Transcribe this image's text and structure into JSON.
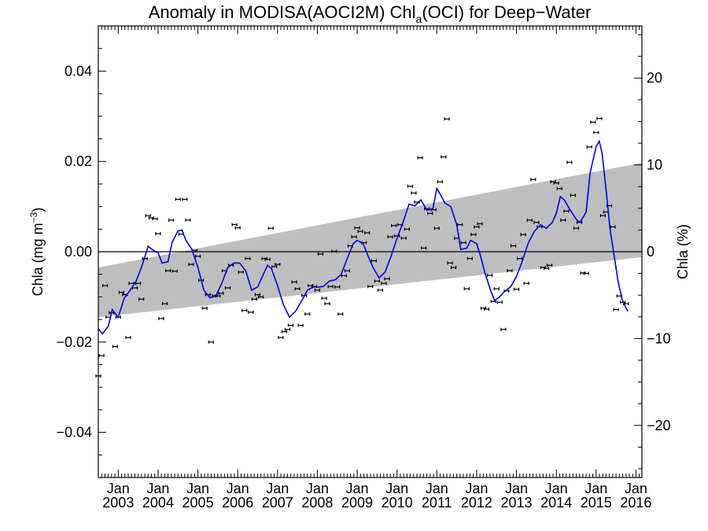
{
  "chart_data": {
    "type": "line",
    "title": "Anomaly in MODISA(AOCI2M) Chl",
    "title_sub": "a",
    "title_suffix": "(OCI) for Deep−Water",
    "ylabel": "Chla (mg m",
    "ylabel_sup": "−3",
    "ylabel_suffix": ")",
    "y2label": "Chla (%)",
    "ylim": [
      -0.05,
      0.05
    ],
    "y2lim": [
      -26,
      26
    ],
    "xlim": [
      2002.5,
      2016.15
    ],
    "yticks": [
      {
        "v": 0.04,
        "label": "0.04"
      },
      {
        "v": 0.02,
        "label": "0.02"
      },
      {
        "v": 0.0,
        "label": "0.00"
      },
      {
        "v": -0.02,
        "label": "−0.02"
      },
      {
        "v": -0.04,
        "label": "−0.04"
      }
    ],
    "y2ticks": [
      {
        "v": 20,
        "label": "20"
      },
      {
        "v": 10,
        "label": "10"
      },
      {
        "v": 0,
        "label": "0"
      },
      {
        "v": -10,
        "label": "−10"
      },
      {
        "v": -20,
        "label": "−20"
      }
    ],
    "xticks": [
      {
        "x": 2003,
        "month": "Jan",
        "year": "2003"
      },
      {
        "x": 2004,
        "month": "Jan",
        "year": "2004"
      },
      {
        "x": 2005,
        "month": "Jan",
        "year": "2005"
      },
      {
        "x": 2006,
        "month": "Jan",
        "year": "2006"
      },
      {
        "x": 2007,
        "month": "Jan",
        "year": "2007"
      },
      {
        "x": 2008,
        "month": "Jan",
        "year": "2008"
      },
      {
        "x": 2009,
        "month": "Jan",
        "year": "2009"
      },
      {
        "x": 2010,
        "month": "Jan",
        "year": "2010"
      },
      {
        "x": 2011,
        "month": "Jan",
        "year": "2011"
      },
      {
        "x": 2012,
        "month": "Jan",
        "year": "2012"
      },
      {
        "x": 2013,
        "month": "Jan",
        "year": "2013"
      },
      {
        "x": 2014,
        "month": "Jan",
        "year": "2014"
      },
      {
        "x": 2015,
        "month": "Jan",
        "year": "2015"
      },
      {
        "x": 2016,
        "month": "Jan",
        "year": "2016"
      }
    ],
    "band": {
      "x": [
        2002.5,
        2016.15
      ],
      "lower": [
        -0.0145,
        -0.0012
      ],
      "upper": [
        -0.0035,
        0.0197
      ],
      "color": "#bebebe"
    },
    "zero_line": 0,
    "colors": {
      "line": "#0000ee",
      "points": "#000000",
      "band": "#bebebe"
    },
    "points": [
      {
        "x": 2002.5,
        "y": -0.0275
      },
      {
        "x": 2002.58,
        "y": -0.023
      },
      {
        "x": 2002.67,
        "y": -0.0075
      },
      {
        "x": 2002.75,
        "y": -0.0145
      },
      {
        "x": 2002.83,
        "y": -0.0135
      },
      {
        "x": 2002.92,
        "y": -0.021
      },
      {
        "x": 2003.0,
        "y": -0.0145
      },
      {
        "x": 2003.08,
        "y": -0.009
      },
      {
        "x": 2003.17,
        "y": -0.0095
      },
      {
        "x": 2003.25,
        "y": -0.019
      },
      {
        "x": 2003.33,
        "y": -0.007
      },
      {
        "x": 2003.42,
        "y": -0.008
      },
      {
        "x": 2003.5,
        "y": -0.007
      },
      {
        "x": 2003.58,
        "y": -0.0105
      },
      {
        "x": 2003.67,
        "y": -0.0015
      },
      {
        "x": 2003.75,
        "y": 0.008
      },
      {
        "x": 2003.83,
        "y": 0.0075
      },
      {
        "x": 2003.92,
        "y": 0.0073
      },
      {
        "x": 2004.0,
        "y": 0.004
      },
      {
        "x": 2004.08,
        "y": -0.0148
      },
      {
        "x": 2004.17,
        "y": -0.0115
      },
      {
        "x": 2004.25,
        "y": -0.0042
      },
      {
        "x": 2004.33,
        "y": 0.007
      },
      {
        "x": 2004.42,
        "y": -0.0043
      },
      {
        "x": 2004.5,
        "y": 0.0116
      },
      {
        "x": 2004.58,
        "y": 0.0039
      },
      {
        "x": 2004.67,
        "y": 0.0116
      },
      {
        "x": 2004.75,
        "y": 0.007
      },
      {
        "x": 2004.83,
        "y": -0.0028
      },
      {
        "x": 2004.92,
        "y": 0.0003
      },
      {
        "x": 2005.0,
        "y": -0.001
      },
      {
        "x": 2005.08,
        "y": -0.0063
      },
      {
        "x": 2005.17,
        "y": -0.0125
      },
      {
        "x": 2005.25,
        "y": -0.0095
      },
      {
        "x": 2005.33,
        "y": -0.02
      },
      {
        "x": 2005.42,
        "y": -0.0097
      },
      {
        "x": 2005.5,
        "y": -0.0098
      },
      {
        "x": 2005.58,
        "y": -0.0092
      },
      {
        "x": 2005.67,
        "y": -0.0042
      },
      {
        "x": 2005.75,
        "y": -0.008
      },
      {
        "x": 2005.83,
        "y": -0.003
      },
      {
        "x": 2005.92,
        "y": 0.006
      },
      {
        "x": 2006.0,
        "y": 0.0053
      },
      {
        "x": 2006.08,
        "y": -0.0045
      },
      {
        "x": 2006.17,
        "y": -0.013
      },
      {
        "x": 2006.25,
        "y": -0.0015
      },
      {
        "x": 2006.33,
        "y": -0.0134
      },
      {
        "x": 2006.42,
        "y": -0.0105
      },
      {
        "x": 2006.5,
        "y": -0.0095
      },
      {
        "x": 2006.58,
        "y": -0.01
      },
      {
        "x": 2006.67,
        "y": -0.0015
      },
      {
        "x": 2006.75,
        "y": -0.0017
      },
      {
        "x": 2006.83,
        "y": 0.0052
      },
      {
        "x": 2006.92,
        "y": -0.0033
      },
      {
        "x": 2007.0,
        "y": -0.0028
      },
      {
        "x": 2007.08,
        "y": -0.019
      },
      {
        "x": 2007.17,
        "y": -0.0177
      },
      {
        "x": 2007.25,
        "y": -0.0172
      },
      {
        "x": 2007.33,
        "y": -0.0163
      },
      {
        "x": 2007.42,
        "y": -0.0067
      },
      {
        "x": 2007.5,
        "y": -0.0082
      },
      {
        "x": 2007.58,
        "y": -0.0163
      },
      {
        "x": 2007.67,
        "y": -0.0097
      },
      {
        "x": 2007.75,
        "y": -0.0138
      },
      {
        "x": 2007.83,
        "y": -0.0075
      },
      {
        "x": 2007.92,
        "y": -0.0077
      },
      {
        "x": 2008.0,
        "y": -0.0085
      },
      {
        "x": 2008.08,
        "y": -0.0005
      },
      {
        "x": 2008.17,
        "y": -0.0103
      },
      {
        "x": 2008.25,
        "y": -0.0115
      },
      {
        "x": 2008.33,
        "y": -0.0077
      },
      {
        "x": 2008.42,
        "y": 0.0001
      },
      {
        "x": 2008.5,
        "y": -0.0078
      },
      {
        "x": 2008.58,
        "y": -0.0138
      },
      {
        "x": 2008.67,
        "y": -0.0053
      },
      {
        "x": 2008.75,
        "y": -0.0042
      },
      {
        "x": 2008.83,
        "y": 0.0013
      },
      {
        "x": 2008.92,
        "y": 0.0033
      },
      {
        "x": 2009.0,
        "y": 0.0053
      },
      {
        "x": 2009.08,
        "y": 0.0045
      },
      {
        "x": 2009.17,
        "y": 0.002
      },
      {
        "x": 2009.25,
        "y": 0.0042
      },
      {
        "x": 2009.33,
        "y": -0.0077
      },
      {
        "x": 2009.42,
        "y": -0.002
      },
      {
        "x": 2009.5,
        "y": -0.0065
      },
      {
        "x": 2009.58,
        "y": -0.0085
      },
      {
        "x": 2009.67,
        "y": -0.007
      },
      {
        "x": 2009.75,
        "y": -0.006
      },
      {
        "x": 2009.83,
        "y": 0.0033
      },
      {
        "x": 2009.92,
        "y": 0.0058
      },
      {
        "x": 2010.0,
        "y": 0.0035
      },
      {
        "x": 2010.08,
        "y": 0.006
      },
      {
        "x": 2010.17,
        "y": 0.003
      },
      {
        "x": 2010.25,
        "y": 0.005
      },
      {
        "x": 2010.33,
        "y": 0.0145
      },
      {
        "x": 2010.42,
        "y": 0.013
      },
      {
        "x": 2010.5,
        "y": 0.011
      },
      {
        "x": 2010.58,
        "y": 0.0208
      },
      {
        "x": 2010.67,
        "y": 0.0008
      },
      {
        "x": 2010.75,
        "y": 0.0095
      },
      {
        "x": 2010.83,
        "y": 0.0085
      },
      {
        "x": 2010.92,
        "y": 0.0093
      },
      {
        "x": 2011.0,
        "y": 0.0052
      },
      {
        "x": 2011.08,
        "y": 0.0155
      },
      {
        "x": 2011.17,
        "y": 0.021
      },
      {
        "x": 2011.25,
        "y": 0.0294
      },
      {
        "x": 2011.33,
        "y": -0.0025
      },
      {
        "x": 2011.42,
        "y": -0.0035
      },
      {
        "x": 2011.5,
        "y": 0.003
      },
      {
        "x": 2011.58,
        "y": 0.006
      },
      {
        "x": 2011.67,
        "y": 0.002
      },
      {
        "x": 2011.75,
        "y": -0.0082
      },
      {
        "x": 2011.83,
        "y": -0.0015
      },
      {
        "x": 2011.92,
        "y": 0.0038
      },
      {
        "x": 2012.0,
        "y": 0.0055
      },
      {
        "x": 2012.08,
        "y": 0.0062
      },
      {
        "x": 2012.17,
        "y": -0.0125
      },
      {
        "x": 2012.25,
        "y": -0.0127
      },
      {
        "x": 2012.33,
        "y": -0.0052
      },
      {
        "x": 2012.42,
        "y": -0.011
      },
      {
        "x": 2012.5,
        "y": -0.0082
      },
      {
        "x": 2012.58,
        "y": -0.0112
      },
      {
        "x": 2012.67,
        "y": -0.0172
      },
      {
        "x": 2012.75,
        "y": -0.0087
      },
      {
        "x": 2012.83,
        "y": -0.0042
      },
      {
        "x": 2012.92,
        "y": 0.0013
      },
      {
        "x": 2013.0,
        "y": -0.0083
      },
      {
        "x": 2013.08,
        "y": -0.0015
      },
      {
        "x": 2013.17,
        "y": 0.0038
      },
      {
        "x": 2013.25,
        "y": -0.007
      },
      {
        "x": 2013.33,
        "y": 0.007
      },
      {
        "x": 2013.42,
        "y": 0.016
      },
      {
        "x": 2013.5,
        "y": 0.0065
      },
      {
        "x": 2013.58,
        "y": 0.0055
      },
      {
        "x": 2013.67,
        "y": -0.0035
      },
      {
        "x": 2013.75,
        "y": -0.0037
      },
      {
        "x": 2013.83,
        "y": -0.003
      },
      {
        "x": 2013.92,
        "y": 0.0155
      },
      {
        "x": 2014.0,
        "y": 0.0152
      },
      {
        "x": 2014.08,
        "y": 0.014
      },
      {
        "x": 2014.17,
        "y": 0.007
      },
      {
        "x": 2014.25,
        "y": 0.009
      },
      {
        "x": 2014.33,
        "y": 0.0198
      },
      {
        "x": 2014.42,
        "y": 0.0125
      },
      {
        "x": 2014.5,
        "y": 0.0052
      },
      {
        "x": 2014.58,
        "y": 0.0065
      },
      {
        "x": 2014.67,
        "y": -0.0047
      },
      {
        "x": 2014.75,
        "y": -0.0048
      },
      {
        "x": 2014.83,
        "y": 0.0232
      },
      {
        "x": 2014.92,
        "y": 0.0287
      },
      {
        "x": 2015.0,
        "y": 0.0264
      },
      {
        "x": 2015.08,
        "y": 0.0295
      },
      {
        "x": 2015.17,
        "y": 0.008
      },
      {
        "x": 2015.25,
        "y": 0.0088
      },
      {
        "x": 2015.33,
        "y": 0.0102
      },
      {
        "x": 2015.42,
        "y": 0.0055
      },
      {
        "x": 2015.5,
        "y": -0.0128
      },
      {
        "x": 2015.58,
        "y": -0.0098
      },
      {
        "x": 2015.67,
        "y": -0.0112
      },
      {
        "x": 2015.75,
        "y": -0.0115
      }
    ],
    "smooth_line": [
      {
        "x": 2002.5,
        "y": -0.017
      },
      {
        "x": 2002.6,
        "y": -0.0182
      },
      {
        "x": 2002.75,
        "y": -0.0165
      },
      {
        "x": 2002.85,
        "y": -0.0128
      },
      {
        "x": 2003.0,
        "y": -0.0145
      },
      {
        "x": 2003.15,
        "y": -0.0103
      },
      {
        "x": 2003.3,
        "y": -0.0085
      },
      {
        "x": 2003.45,
        "y": -0.0065
      },
      {
        "x": 2003.6,
        "y": -0.003
      },
      {
        "x": 2003.75,
        "y": 0.0012
      },
      {
        "x": 2003.9,
        "y": 0.0002
      },
      {
        "x": 2004.0,
        "y": -0.0002
      },
      {
        "x": 2004.1,
        "y": -0.0025
      },
      {
        "x": 2004.25,
        "y": -0.0022
      },
      {
        "x": 2004.35,
        "y": 0.002
      },
      {
        "x": 2004.5,
        "y": 0.0046
      },
      {
        "x": 2004.6,
        "y": 0.0048
      },
      {
        "x": 2004.7,
        "y": 0.0025
      },
      {
        "x": 2004.85,
        "y": 0.0005
      },
      {
        "x": 2005.0,
        "y": -0.0035
      },
      {
        "x": 2005.15,
        "y": -0.0085
      },
      {
        "x": 2005.3,
        "y": -0.0102
      },
      {
        "x": 2005.45,
        "y": -0.0098
      },
      {
        "x": 2005.6,
        "y": -0.007
      },
      {
        "x": 2005.75,
        "y": -0.0035
      },
      {
        "x": 2005.9,
        "y": -0.0025
      },
      {
        "x": 2006.05,
        "y": -0.0025
      },
      {
        "x": 2006.2,
        "y": -0.0042
      },
      {
        "x": 2006.35,
        "y": -0.0085
      },
      {
        "x": 2006.5,
        "y": -0.0078
      },
      {
        "x": 2006.6,
        "y": -0.0058
      },
      {
        "x": 2006.75,
        "y": -0.003
      },
      {
        "x": 2006.85,
        "y": -0.0038
      },
      {
        "x": 2007.0,
        "y": -0.0075
      },
      {
        "x": 2007.15,
        "y": -0.0118
      },
      {
        "x": 2007.3,
        "y": -0.0145
      },
      {
        "x": 2007.45,
        "y": -0.0132
      },
      {
        "x": 2007.6,
        "y": -0.011
      },
      {
        "x": 2007.75,
        "y": -0.0085
      },
      {
        "x": 2007.9,
        "y": -0.0078
      },
      {
        "x": 2008.05,
        "y": -0.0078
      },
      {
        "x": 2008.15,
        "y": -0.0077
      },
      {
        "x": 2008.3,
        "y": -0.0065
      },
      {
        "x": 2008.45,
        "y": -0.0062
      },
      {
        "x": 2008.6,
        "y": -0.005
      },
      {
        "x": 2008.75,
        "y": -0.0015
      },
      {
        "x": 2008.9,
        "y": 0.0018
      },
      {
        "x": 2009.0,
        "y": 0.0025
      },
      {
        "x": 2009.15,
        "y": 0.0018
      },
      {
        "x": 2009.3,
        "y": -0.0015
      },
      {
        "x": 2009.4,
        "y": -0.0035
      },
      {
        "x": 2009.55,
        "y": -0.0058
      },
      {
        "x": 2009.7,
        "y": -0.0045
      },
      {
        "x": 2009.85,
        "y": -0.001
      },
      {
        "x": 2010.0,
        "y": 0.003
      },
      {
        "x": 2010.15,
        "y": 0.0065
      },
      {
        "x": 2010.3,
        "y": 0.0105
      },
      {
        "x": 2010.45,
        "y": 0.0102
      },
      {
        "x": 2010.6,
        "y": 0.0115
      },
      {
        "x": 2010.75,
        "y": 0.0092
      },
      {
        "x": 2010.9,
        "y": 0.0095
      },
      {
        "x": 2011.0,
        "y": 0.014
      },
      {
        "x": 2011.1,
        "y": 0.0125
      },
      {
        "x": 2011.2,
        "y": 0.0108
      },
      {
        "x": 2011.35,
        "y": 0.01
      },
      {
        "x": 2011.5,
        "y": 0.006
      },
      {
        "x": 2011.6,
        "y": 0.0005
      },
      {
        "x": 2011.75,
        "y": 0.0008
      },
      {
        "x": 2011.85,
        "y": 0.0025
      },
      {
        "x": 2012.0,
        "y": 0.0018
      },
      {
        "x": 2012.1,
        "y": -0.001
      },
      {
        "x": 2012.2,
        "y": -0.0045
      },
      {
        "x": 2012.35,
        "y": -0.0085
      },
      {
        "x": 2012.45,
        "y": -0.0108
      },
      {
        "x": 2012.55,
        "y": -0.0102
      },
      {
        "x": 2012.7,
        "y": -0.0088
      },
      {
        "x": 2012.85,
        "y": -0.0078
      },
      {
        "x": 2013.0,
        "y": -0.0055
      },
      {
        "x": 2013.15,
        "y": -0.002
      },
      {
        "x": 2013.3,
        "y": 0.002
      },
      {
        "x": 2013.45,
        "y": 0.0045
      },
      {
        "x": 2013.6,
        "y": 0.006
      },
      {
        "x": 2013.75,
        "y": 0.0052
      },
      {
        "x": 2013.9,
        "y": 0.0065
      },
      {
        "x": 2014.0,
        "y": 0.0085
      },
      {
        "x": 2014.1,
        "y": 0.0122
      },
      {
        "x": 2014.2,
        "y": 0.0115
      },
      {
        "x": 2014.35,
        "y": 0.0092
      },
      {
        "x": 2014.5,
        "y": 0.0072
      },
      {
        "x": 2014.6,
        "y": 0.0065
      },
      {
        "x": 2014.75,
        "y": 0.0088
      },
      {
        "x": 2014.85,
        "y": 0.0175
      },
      {
        "x": 2015.0,
        "y": 0.0233
      },
      {
        "x": 2015.08,
        "y": 0.0245
      },
      {
        "x": 2015.15,
        "y": 0.0218
      },
      {
        "x": 2015.25,
        "y": 0.0138
      },
      {
        "x": 2015.35,
        "y": 0.005
      },
      {
        "x": 2015.45,
        "y": -0.0008
      },
      {
        "x": 2015.55,
        "y": -0.0065
      },
      {
        "x": 2015.65,
        "y": -0.0105
      },
      {
        "x": 2015.75,
        "y": -0.0125
      },
      {
        "x": 2015.8,
        "y": -0.0132
      }
    ]
  }
}
